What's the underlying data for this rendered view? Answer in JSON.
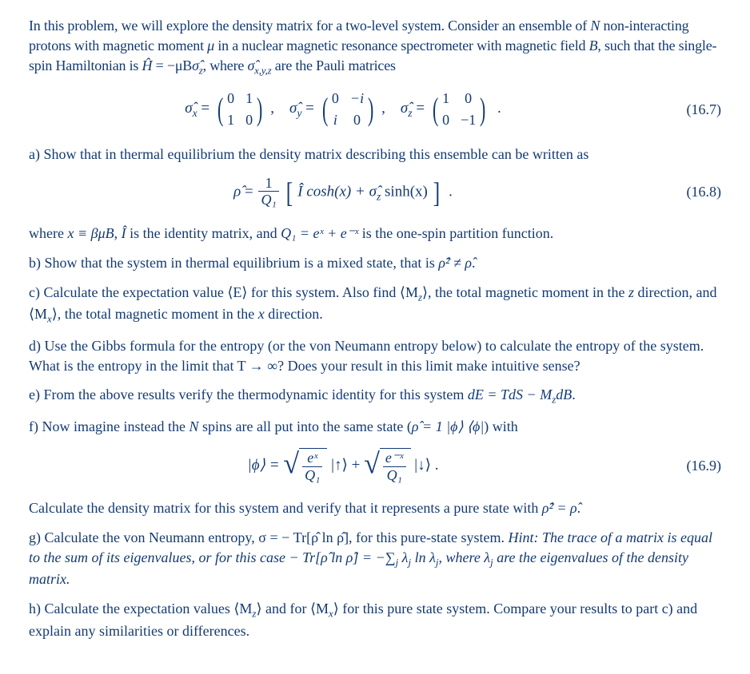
{
  "color_text": "#133a73",
  "font_family": "Times New Roman",
  "intro": {
    "line1": "In this problem, we will explore the density matrix for a two-level system. Consider an ensemble of ",
    "N": "N",
    "line1b": " non-interacting protons with magnetic moment ",
    "mu": "μ",
    "line1c": " in a nuclear magnetic resonance spectrometer with magnetic field ",
    "B": "B",
    "line1d": ", such that the single-spin Hamiltonian is ",
    "Hhat": "Ĥ",
    "eqStr": " = −μB",
    "sigmahat": "σ̂",
    "z": "z",
    "line1e": ", where ",
    "sigmasub": "x,y,z",
    "line1f": " are the Pauli matrices"
  },
  "eq167": {
    "sx_pref": "σ̂",
    "x": "x",
    "eq": " = ",
    "m1": [
      "0",
      "1",
      "1",
      "0"
    ],
    "sy": "y",
    "m2": [
      "0",
      "−i",
      "i",
      "0"
    ],
    "sz": "z",
    "m3": [
      "1",
      "0",
      "0",
      "−1"
    ],
    "num": "(16.7)"
  },
  "partA": {
    "label": "a) Show that in thermal equilibrium the density matrix describing this ensemble can be written as"
  },
  "eq168": {
    "rho": "ρ̂",
    "eq": " = ",
    "one": "1",
    "Q1": "Q₁",
    "IhatT": "Î cosh(x) + σ̂",
    "z": "z",
    "sinh": " sinh(x)",
    "num": "(16.8)"
  },
  "partA2": {
    "t1": "where ",
    "xdef": "x ≡ βμB",
    "t2": ", ",
    "Ihat": "Î",
    "t3": " is the identity matrix, and ",
    "Q1def": "Q₁ = eˣ + e⁻ˣ",
    "t4": " is the one-spin partition function."
  },
  "partB": {
    "t1": "b) Show that the system in thermal equilibrium is a mixed state, that is ",
    "rho2": "ρ̂² ≠ ρ̂",
    "t2": "."
  },
  "partC": {
    "t1": "c) Calculate the expectation value ⟨E⟩ for this system. Also find ⟨M",
    "z": "z",
    "t2": "⟩, the total magnetic moment in the ",
    "zax": "z",
    "t3": " direction, and ⟨M",
    "x": "x",
    "t4": "⟩, the total magnetic moment in the ",
    "xax": "x",
    "t5": " direction."
  },
  "partD": {
    "t1": "d) Use the Gibbs formula for the entropy (or the von Neumann entropy below) to calculate the entropy of the system. What is the entropy in the limit that T → ∞? Does your result in this limit make intuitive sense?"
  },
  "partE": {
    "t1": "e) From the above results verify the thermodynamic identity for this system ",
    "id": "dE = TdS − M",
    "z": "z",
    "dB": "dB",
    "t2": "."
  },
  "partF": {
    "t1": "f) Now imagine instead the ",
    "N": "N",
    "t2": " spins are all put into the same state (",
    "rho": "ρ̂ = 1 |ϕ⟩ ⟨ϕ|",
    "t3": ") with"
  },
  "eq169": {
    "phi": "|ϕ⟩ = ",
    "ex": "eˣ",
    "Q1": "Q₁",
    "up": " |↑⟩ + ",
    "emx": "e⁻ˣ",
    "down": " |↓⟩ .",
    "num": "(16.9)"
  },
  "partF2": {
    "t1": "Calculate the density matrix for this system and verify that it represents a pure state with ",
    "rho2": "ρ̂² = ρ̂",
    "t2": "."
  },
  "partG": {
    "t1": "g) Calculate the von Neumann entropy, σ = − Tr[ρ̂ ln ρ̂], for this pure-state system. ",
    "hint1": "Hint: The trace of a matrix is equal to the sum of its eigenvalues, or for this case − Tr[ρ̂ ln ρ̂] = −∑",
    "j": "j",
    "hint2": " λ",
    "hint3": " ln λ",
    "hint4": ", where λ",
    "hint5": " are the eigenvalues of the density matrix."
  },
  "partH": {
    "t1": "h) Calculate the expectation values ⟨M",
    "z": "z",
    "t2": "⟩ and for ⟨M",
    "x": "x",
    "t3": "⟩ for this pure state system. Compare your results to part c) and explain any similarities or differences."
  }
}
